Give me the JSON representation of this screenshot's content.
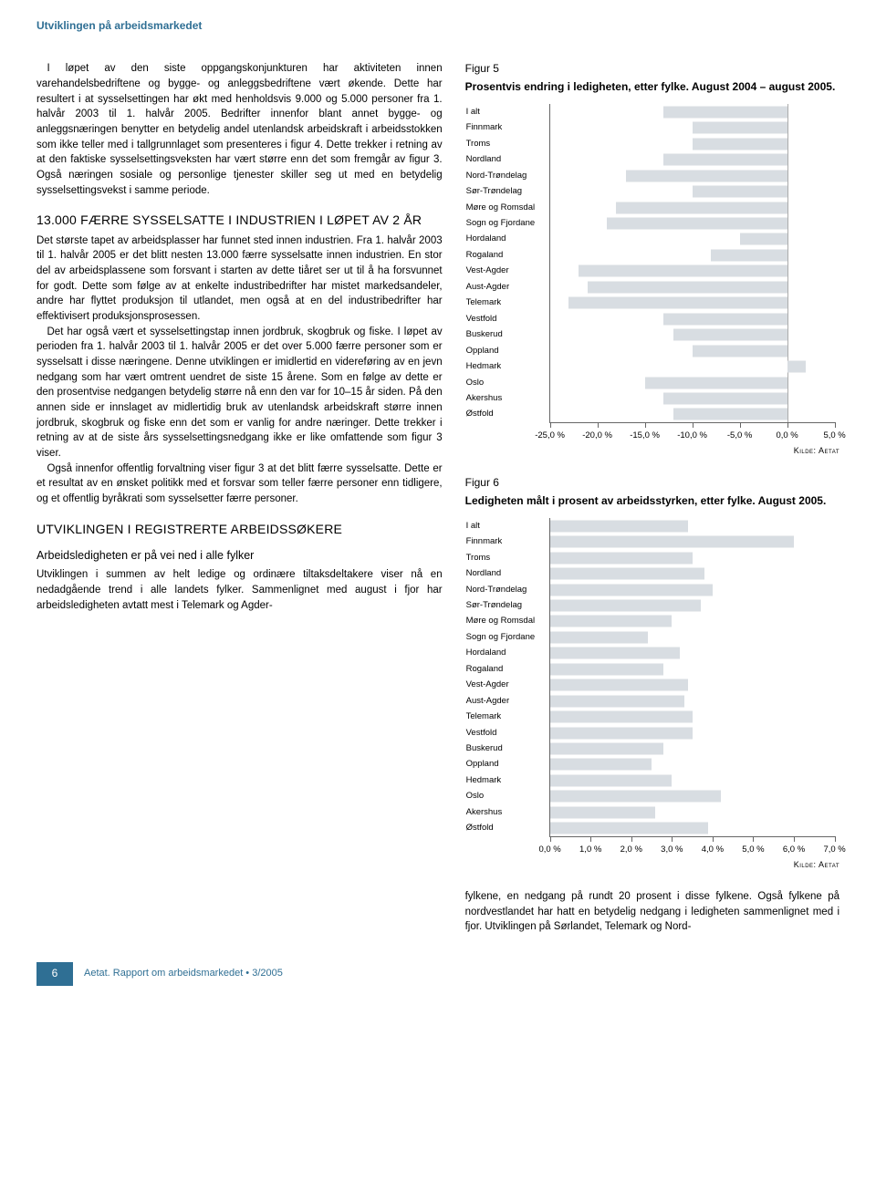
{
  "header": {
    "top_band": "Utviklingen på arbeidsmarkedet"
  },
  "body": {
    "p1": "I løpet av den siste oppgangskonjunkturen har aktiviteten innen varehandelsbedriftene og bygge- og anleggsbedriftene vært økende. Dette har resultert i at sysselsettingen har økt med henholdsvis 9.000 og 5.000 personer fra 1. halvår 2003 til 1. halvår 2005. Bedrifter innenfor blant annet bygge- og anleggsnæringen benytter en betydelig andel utenlandsk arbeidskraft i arbeidsstokken som ikke teller med i tallgrunnlaget som presenteres i figur 4. Dette trekker i retning av at den faktiske sysselsettingsveksten har vært større enn det som fremgår av figur 3. Også næringen sosiale og personlige tjenester skiller seg ut med en betydelig sysselsettingsvekst i samme periode.",
    "h1": "13.000 FÆRRE SYSSELSATTE I INDUSTRIEN I LØPET AV 2 ÅR",
    "p2": "Det største tapet av arbeidsplasser har funnet sted innen industrien. Fra 1. halvår 2003 til 1. halvår 2005 er det blitt nesten 13.000 færre sysselsatte innen industrien. En stor del av arbeidsplassene som forsvant i starten av dette tiåret ser ut til å ha forsvunnet for godt. Dette som følge av at enkelte industribedrifter har mistet markedsandeler, andre har flyttet produksjon til utlandet, men også at en del industribedrifter har effektivisert produksjonsprosessen.",
    "p3": "Det har også vært et sysselsettingstap innen jordbruk, skogbruk og fiske. I løpet av perioden fra 1. halvår 2003 til 1. halvår 2005 er det over 5.000 færre personer som er sysselsatt i disse næringene. Denne utviklingen er imidlertid en videreføring av en jevn nedgang som har vært omtrent uendret de siste 15 årene. Som en følge av dette er den prosentvise nedgangen betydelig større nå enn den var for 10–15 år siden. På den annen side er innslaget av midlertidig bruk av utenlandsk arbeidskraft større innen jordbruk, skogbruk og fiske enn det som er vanlig for andre næringer. Dette trekker i retning av at de siste års sysselsettingsnedgang ikke er like omfattende som figur 3 viser.",
    "p4": "Også innenfor offentlig forvaltning viser figur 3 at det blitt færre sysselsatte. Dette er et resultat av en ønsket politikk med et forsvar som teller færre personer enn tidligere, og et offentlig byråkrati som sysselsetter færre personer.",
    "h2": "UTVIKLINGEN I REGISTRERTE ARBEIDS­SØKERE",
    "h3": "Arbeidsledigheten er på vei ned i alle fylker",
    "p5": "Utviklingen i summen av helt ledige og ordinære tiltaksdeltakere viser nå en nedadgående trend i alle landets fylker. Sammenlignet med august i fjor har arbeidsledigheten avtatt mest i Telemark og Agder-",
    "p_right": "fylkene, en nedgang på rundt 20 prosent i disse fylkene. Også fylkene på nordvestlandet har hatt en betydelig nedgang i ledigheten sammenlignet med i fjor. Utviklingen på Sørlandet, Telemark og Nord-"
  },
  "fig5": {
    "label": "Figur 5",
    "title": "Prosentvis endring i ledigheten, etter fylke. August 2004 – august 2005.",
    "categories": [
      "I alt",
      "Finnmark",
      "Troms",
      "Nordland",
      "Nord-Trøndelag",
      "Sør-Trøndelag",
      "Møre og Romsdal",
      "Sogn og Fjordane",
      "Hordaland",
      "Rogaland",
      "Vest-Agder",
      "Aust-Agder",
      "Telemark",
      "Vestfold",
      "Buskerud",
      "Oppland",
      "Hedmark",
      "Oslo",
      "Akershus",
      "Østfold"
    ],
    "values": [
      -13,
      -10,
      -10,
      -13,
      -17,
      -10,
      -18,
      -19,
      -5,
      -8,
      -22,
      -21,
      -23,
      -13,
      -12,
      -10,
      2,
      -15,
      -13,
      -12
    ],
    "bar_color": "#d8dde2",
    "xmin": -25,
    "xmax": 5,
    "xstep": 5,
    "tick_suffix": ",0 %",
    "source": "Kilde: Aetat"
  },
  "fig6": {
    "label": "Figur 6",
    "title": "Ledigheten målt i prosent av arbeidsstyrken, etter fylke. August 2005.",
    "categories": [
      "I alt",
      "Finnmark",
      "Troms",
      "Nordland",
      "Nord-Trøndelag",
      "Sør-Trøndelag",
      "Møre og Romsdal",
      "Sogn og Fjordane",
      "Hordaland",
      "Rogaland",
      "Vest-Agder",
      "Aust-Agder",
      "Telemark",
      "Vestfold",
      "Buskerud",
      "Oppland",
      "Hedmark",
      "Oslo",
      "Akershus",
      "Østfold"
    ],
    "values": [
      3.4,
      6.0,
      3.5,
      3.8,
      4.0,
      3.7,
      3.0,
      2.4,
      3.2,
      2.8,
      3.4,
      3.3,
      3.5,
      3.5,
      2.8,
      2.5,
      3.0,
      4.2,
      2.6,
      3.9
    ],
    "bar_color": "#d8dde2",
    "xmin": 0,
    "xmax": 7,
    "xstep": 1,
    "tick_suffix": ",0 %",
    "source": "Kilde: Aetat"
  },
  "footer": {
    "page_no": "6",
    "text": "Aetat. Rapport om arbeidsmarkedet • 3/2005"
  }
}
